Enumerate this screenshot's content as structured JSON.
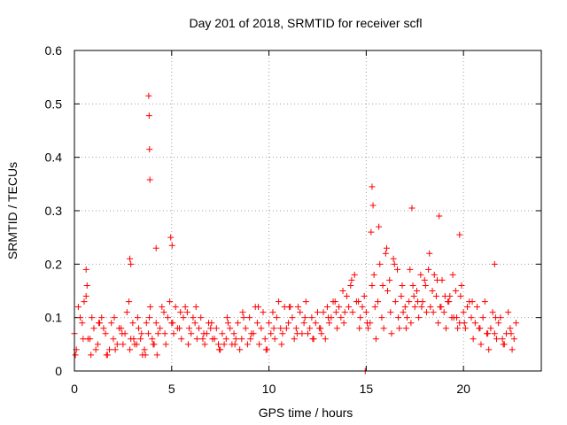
{
  "chart_data": {
    "type": "scatter",
    "title": "Day 201 of 2018, SRMTID for receiver scfl",
    "xlabel": "GPS time / hours",
    "ylabel": "SRMTID / TECUs",
    "xlim": [
      0,
      24
    ],
    "ylim": [
      0,
      0.6
    ],
    "xticks": [
      0,
      5,
      10,
      15,
      20
    ],
    "xtick_labels": [
      "0",
      "5",
      "10",
      "15",
      "20"
    ],
    "yticks": [
      0,
      0.1,
      0.2,
      0.3,
      0.4,
      0.5,
      0.6
    ],
    "ytick_labels": [
      "0",
      "0.1",
      "0.2",
      "0.3",
      "0.4",
      "0.5",
      "0.6"
    ],
    "grid": true,
    "marker": "+",
    "marker_color": "#ff0000",
    "axis_color": "#000000",
    "grid_color": "#a0a0a0",
    "series": [
      {
        "name": "SRMTID",
        "x": [
          0.0,
          0.2,
          0.4,
          0.6,
          0.8,
          1.0,
          1.2,
          1.4,
          1.6,
          1.8,
          2.0,
          2.2,
          2.4,
          2.6,
          2.8,
          3.0,
          3.2,
          3.4,
          3.6,
          3.8,
          4.0,
          4.2,
          4.4,
          4.6,
          4.8,
          5.0,
          5.2,
          5.4,
          5.6,
          5.8,
          6.0,
          6.2,
          6.4,
          6.6,
          6.8,
          7.0,
          7.2,
          7.4,
          7.6,
          7.8,
          8.0,
          8.2,
          8.4,
          8.6,
          8.8,
          9.0,
          9.2,
          9.4,
          9.6,
          9.8,
          10.0,
          10.2,
          10.4,
          10.6,
          10.8,
          11.0,
          11.2,
          11.4,
          11.6,
          11.8,
          12.0,
          12.2,
          12.4,
          12.6,
          12.8,
          13.0,
          13.2,
          13.4,
          13.6,
          13.8,
          14.0,
          14.2,
          14.4,
          14.6,
          14.8,
          15.0,
          15.2,
          15.4,
          15.6,
          15.8,
          16.0,
          16.2,
          16.4,
          16.6,
          16.8,
          17.0,
          17.2,
          17.4,
          17.6,
          17.8,
          18.0,
          18.2,
          18.4,
          18.6,
          18.8,
          19.0,
          19.2,
          19.4,
          19.6,
          19.8,
          20.0,
          20.2,
          20.4,
          20.6,
          20.8,
          21.0,
          21.2,
          21.4,
          21.6,
          21.8,
          22.0,
          22.2,
          22.4,
          22.6,
          0.1,
          0.3,
          0.5,
          0.7,
          0.9,
          1.1,
          1.3,
          1.5,
          1.7,
          1.9,
          2.1,
          2.3,
          2.5,
          2.7,
          2.9,
          3.1,
          3.3,
          3.5,
          3.7,
          3.9,
          4.1,
          4.3,
          4.5,
          4.7,
          4.9,
          5.1,
          5.3,
          5.5,
          5.7,
          5.9,
          6.1,
          6.3,
          6.5,
          6.7,
          6.9,
          7.1,
          7.3,
          7.5,
          7.7,
          7.9,
          8.1,
          8.3,
          8.5,
          8.7,
          8.9,
          9.1,
          9.3,
          9.5,
          9.7,
          9.9,
          10.1,
          10.3,
          10.5,
          10.7,
          10.9,
          11.1,
          11.3,
          11.5,
          11.7,
          11.9,
          12.1,
          12.3,
          12.5,
          12.7,
          12.9,
          13.1,
          13.3,
          13.5,
          13.7,
          13.9,
          14.1,
          14.3,
          14.5,
          14.7,
          14.9,
          15.1,
          15.3,
          15.5,
          15.7,
          15.9,
          16.1,
          16.3,
          16.5,
          16.7,
          16.9,
          17.1,
          17.3,
          17.5,
          17.7,
          17.9,
          18.1,
          18.3,
          18.5,
          18.7,
          18.9,
          19.1,
          19.3,
          19.5,
          19.7,
          19.9,
          20.1,
          20.3,
          20.5,
          20.7,
          20.9,
          21.1,
          21.3,
          21.5,
          21.7,
          21.9,
          22.1,
          22.3,
          22.5,
          22.7,
          0.05,
          0.45,
          0.65,
          0.85,
          1.25,
          1.65,
          2.05,
          2.45,
          2.85,
          3.05,
          3.25,
          3.45,
          3.65,
          3.85,
          4.05,
          4.25,
          4.65,
          5.05,
          5.45,
          5.85,
          6.25,
          6.65,
          7.05,
          7.45,
          7.85,
          8.25,
          8.65,
          9.05,
          9.45,
          9.85,
          10.25,
          10.65,
          11.05,
          11.45,
          11.85,
          12.25,
          12.65,
          13.05,
          13.45,
          13.85,
          14.25,
          14.65,
          15.05,
          15.25,
          15.45,
          15.65,
          15.85,
          16.05,
          16.25,
          16.45,
          16.65,
          16.85,
          17.05,
          17.25,
          17.45,
          17.65,
          17.85,
          18.05,
          18.25,
          18.45,
          18.65,
          18.85,
          19.05,
          19.25,
          19.45,
          19.65,
          19.85,
          20.05,
          20.45,
          20.85,
          21.25,
          21.65,
          22.05,
          22.45,
          3.82,
          3.84,
          3.86,
          3.88,
          4.95,
          5.02,
          15.3,
          15.35,
          17.35,
          18.75,
          19.8,
          21.6,
          2.85,
          2.9,
          4.2,
          0.6,
          14.95
        ],
        "y": [
          0.07,
          0.12,
          0.09,
          0.14,
          0.06,
          0.08,
          0.05,
          0.1,
          0.07,
          0.04,
          0.06,
          0.05,
          0.08,
          0.07,
          0.13,
          0.09,
          0.05,
          0.06,
          0.04,
          0.07,
          0.06,
          0.09,
          0.08,
          0.11,
          0.1,
          0.09,
          0.12,
          0.08,
          0.1,
          0.11,
          0.07,
          0.09,
          0.08,
          0.06,
          0.07,
          0.08,
          0.06,
          0.05,
          0.07,
          0.06,
          0.08,
          0.07,
          0.09,
          0.06,
          0.08,
          0.1,
          0.07,
          0.09,
          0.08,
          0.06,
          0.09,
          0.11,
          0.1,
          0.08,
          0.12,
          0.09,
          0.1,
          0.08,
          0.11,
          0.09,
          0.07,
          0.1,
          0.09,
          0.08,
          0.11,
          0.12,
          0.1,
          0.13,
          0.12,
          0.15,
          0.14,
          0.16,
          0.18,
          0.13,
          0.12,
          0.11,
          0.09,
          0.18,
          0.13,
          0.1,
          0.22,
          0.17,
          0.21,
          0.19,
          0.14,
          0.12,
          0.13,
          0.16,
          0.15,
          0.18,
          0.17,
          0.19,
          0.15,
          0.14,
          0.12,
          0.11,
          0.13,
          0.1,
          0.15,
          0.09,
          0.11,
          0.12,
          0.1,
          0.09,
          0.08,
          0.1,
          0.07,
          0.08,
          0.07,
          0.09,
          0.06,
          0.07,
          0.08,
          0.06,
          0.04,
          0.1,
          0.13,
          0.06,
          0.1,
          0.04,
          0.09,
          0.08,
          0.03,
          0.09,
          0.04,
          0.08,
          0.05,
          0.11,
          0.06,
          0.05,
          0.08,
          0.03,
          0.09,
          0.12,
          0.05,
          0.07,
          0.12,
          0.05,
          0.13,
          0.07,
          0.08,
          0.06,
          0.12,
          0.08,
          0.1,
          0.06,
          0.1,
          0.05,
          0.09,
          0.06,
          0.08,
          0.04,
          0.05,
          0.09,
          0.05,
          0.06,
          0.04,
          0.1,
          0.05,
          0.07,
          0.12,
          0.05,
          0.11,
          0.04,
          0.07,
          0.06,
          0.13,
          0.07,
          0.08,
          0.12,
          0.06,
          0.12,
          0.07,
          0.13,
          0.08,
          0.06,
          0.11,
          0.07,
          0.06,
          0.09,
          0.13,
          0.08,
          0.1,
          0.11,
          0.12,
          0.11,
          0.13,
          0.1,
          0.14,
          0.08,
          0.16,
          0.06,
          0.2,
          0.08,
          0.15,
          0.07,
          0.13,
          0.08,
          0.11,
          0.1,
          0.09,
          0.12,
          0.1,
          0.13,
          0.11,
          0.12,
          0.18,
          0.09,
          0.17,
          0.08,
          0.14,
          0.1,
          0.08,
          0.16,
          0.08,
          0.13,
          0.06,
          0.12,
          0.05,
          0.13,
          0.04,
          0.11,
          0.06,
          0.1,
          0.05,
          0.11,
          0.04,
          0.09,
          0.03,
          0.06,
          0.16,
          0.03,
          0.09,
          0.03,
          0.1,
          0.07,
          0.04,
          0.06,
          0.1,
          0.07,
          0.03,
          0.1,
          0.05,
          0.03,
          0.07,
          0.09,
          0.11,
          0.05,
          0.12,
          0.07,
          0.09,
          0.04,
          0.1,
          0.05,
          0.11,
          0.06,
          0.12,
          0.04,
          0.08,
          0.05,
          0.12,
          0.07,
          0.1,
          0.06,
          0.08,
          0.1,
          0.11,
          0.09,
          0.17,
          0.08,
          0.09,
          0.26,
          0.12,
          0.27,
          0.16,
          0.23,
          0.11,
          0.2,
          0.1,
          0.16,
          0.08,
          0.19,
          0.14,
          0.13,
          0.12,
          0.16,
          0.22,
          0.11,
          0.17,
          0.12,
          0.14,
          0.13,
          0.18,
          0.1,
          0.14,
          0.09,
          0.13,
          0.08,
          0.07,
          0.1,
          0.05,
          0.07,
          0.515,
          0.478,
          0.415,
          0.358,
          0.25,
          0.235,
          0.345,
          0.31,
          0.305,
          0.29,
          0.255,
          0.2,
          0.21,
          0.2,
          0.23,
          0.19,
          0.0
        ]
      }
    ]
  }
}
